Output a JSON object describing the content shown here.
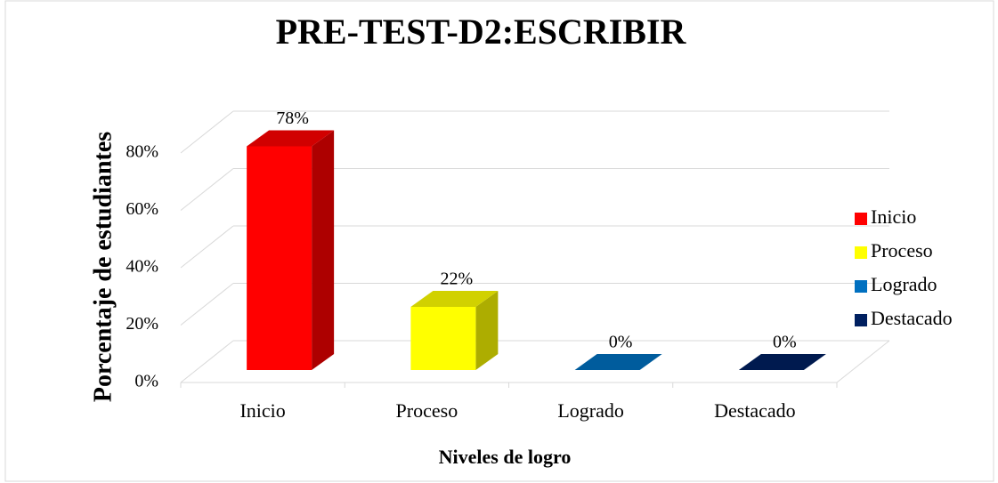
{
  "chart_data": {
    "type": "bar3d",
    "title": "PRE-TEST-D2:ESCRIBIR",
    "x_label": "Niveles de logro",
    "y_label": "Porcentaje de estudiantes",
    "categories": [
      "Inicio",
      "Proceso",
      "Logrado",
      "Destacado"
    ],
    "values": [
      78,
      22,
      0,
      0
    ],
    "value_labels": [
      "78%",
      "22%",
      "0%",
      "0%"
    ],
    "colors": [
      "#ff0000",
      "#ffff00",
      "#0070c0",
      "#002060"
    ],
    "ylim": [
      0,
      80
    ],
    "yticks": [
      {
        "value": 0,
        "label": "0%"
      },
      {
        "value": 20,
        "label": "20%"
      },
      {
        "value": 40,
        "label": "40%"
      },
      {
        "value": 60,
        "label": "60%"
      },
      {
        "value": 80,
        "label": "80%"
      }
    ],
    "grid": true,
    "legend": "right"
  }
}
